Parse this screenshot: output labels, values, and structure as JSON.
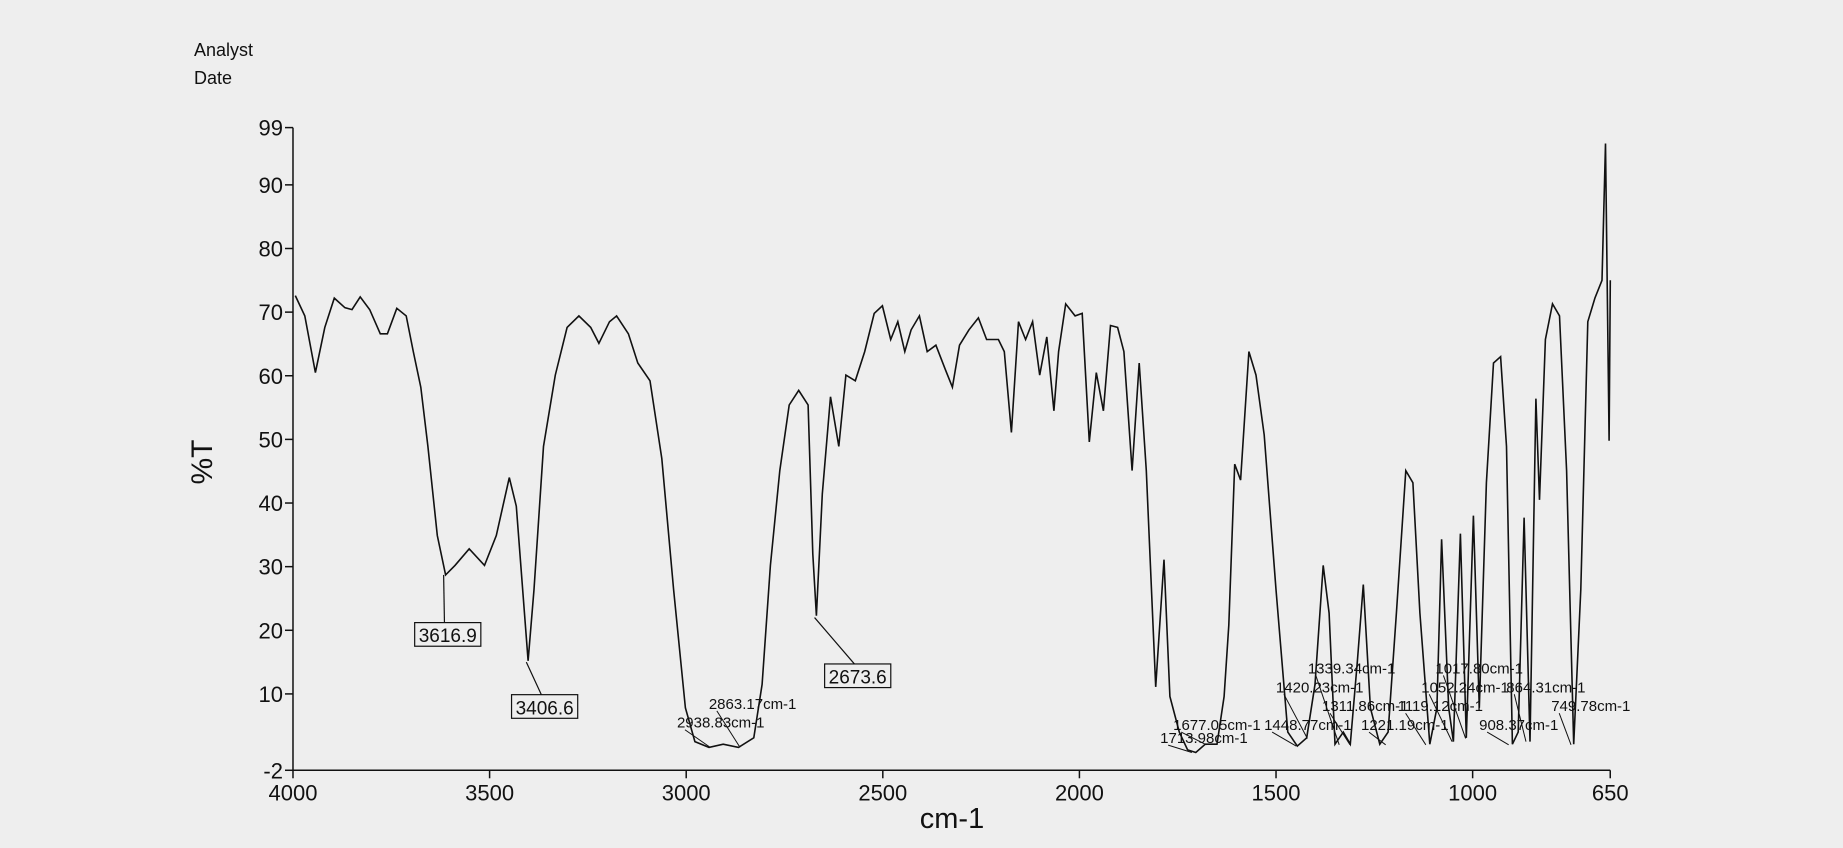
{
  "chart_data": {
    "type": "line",
    "header": [
      "Analyst",
      "Date"
    ],
    "xlabel": "cm-1",
    "ylabel": "%T",
    "xlim": [
      4000,
      650
    ],
    "xticks": [
      4000,
      3500,
      3000,
      2500,
      2000,
      1500,
      1000,
      650
    ],
    "ylim": [
      -2,
      99
    ],
    "yticks": [
      -2,
      10,
      20,
      30,
      40,
      50,
      60,
      70,
      80,
      90,
      99
    ],
    "color": "#111111",
    "x": [
      3994,
      3970,
      3943,
      3919,
      3895,
      3868,
      3850,
      3829,
      3805,
      3778,
      3760,
      3736,
      3712,
      3694,
      3675,
      3657,
      3633,
      3612,
      3588,
      3552,
      3513,
      3483,
      3450,
      3432,
      3402,
      3387,
      3363,
      3333,
      3303,
      3273,
      3243,
      3222,
      3195,
      3177,
      3147,
      3123,
      3092,
      3062,
      3032,
      3002,
      2978,
      2942,
      2906,
      2867,
      2828,
      2807,
      2786,
      2762,
      2738,
      2714,
      2690,
      2678,
      2669,
      2654,
      2633,
      2612,
      2594,
      2570,
      2546,
      2522,
      2501,
      2480,
      2462,
      2444,
      2428,
      2407,
      2387,
      2365,
      2341,
      2323,
      2305,
      2281,
      2257,
      2236,
      2206,
      2191,
      2173,
      2155,
      2137,
      2119,
      2101,
      2083,
      2065,
      2053,
      2035,
      2011,
      1993,
      1975,
      1957,
      1939,
      1921,
      1903,
      1887,
      1866,
      1848,
      1830,
      1806,
      1785,
      1770,
      1746,
      1725,
      1704,
      1680,
      1650,
      1632,
      1620,
      1605,
      1590,
      1569,
      1551,
      1530,
      1500,
      1470,
      1446,
      1422,
      1401,
      1380,
      1365,
      1350,
      1329,
      1311,
      1293,
      1278,
      1260,
      1236,
      1215,
      1194,
      1170,
      1152,
      1134,
      1109,
      1091,
      1079,
      1061,
      1049,
      1031,
      1016,
      998,
      983,
      965,
      947,
      929,
      914,
      899,
      884,
      869,
      854,
      839,
      830,
      815,
      797,
      779,
      761,
      743,
      725,
      707,
      689,
      671,
      662,
      653,
      650
    ],
    "values": [
      72.6,
      69.4,
      60.5,
      67.6,
      72.2,
      70.7,
      70.4,
      72.4,
      70.4,
      66.6,
      66.6,
      70.6,
      69.4,
      63.8,
      58.2,
      48.9,
      34.9,
      28.7,
      30.2,
      32.8,
      30.2,
      34.9,
      44,
      39.5,
      15.2,
      26.4,
      48.9,
      60.1,
      67.6,
      69.4,
      67.6,
      65.1,
      68.5,
      69.4,
      66.6,
      62,
      59.2,
      47,
      26.4,
      7.8,
      2.5,
      1.6,
      2.1,
      1.6,
      3.1,
      11.5,
      30.2,
      45.1,
      55.4,
      57.7,
      55.4,
      32,
      22.3,
      41.4,
      56.7,
      48.9,
      60.1,
      59.2,
      63.8,
      69.8,
      71,
      65.7,
      68.5,
      63.8,
      67.2,
      69.4,
      63.8,
      64.8,
      61,
      58.2,
      64.8,
      67.2,
      69.1,
      65.7,
      65.7,
      63.8,
      51.1,
      68.5,
      65.7,
      68.5,
      60.1,
      66.1,
      54.5,
      63.8,
      71.3,
      69.4,
      69.8,
      49.6,
      60.5,
      54.5,
      67.9,
      67.6,
      63.8,
      45.1,
      62,
      45.1,
      11.1,
      31.1,
      9.6,
      4,
      1.2,
      0.8,
      2.1,
      2.1,
      9.6,
      20.8,
      46.1,
      43.6,
      63.8,
      60.1,
      50.7,
      26.4,
      4,
      1.8,
      3.1,
      11.5,
      30.2,
      22.7,
      2.1,
      4,
      2.1,
      15.2,
      27.2,
      7.8,
      2.1,
      4,
      22.7,
      45.1,
      43.2,
      22.7,
      2.1,
      7.8,
      34.3,
      7.8,
      2.5,
      35.2,
      3.1,
      38,
      7.8,
      43.2,
      62,
      63,
      48.9,
      2.1,
      4,
      37.7,
      2.5,
      56.4,
      40.5,
      65.7,
      71.3,
      69.4,
      45.1,
      2.1,
      26.4,
      68.5,
      72.2,
      75,
      96.5,
      49.8,
      75
    ],
    "boxed_annotations": [
      {
        "text": "3616.9",
        "x": 3616.9,
        "y": 28.7
      },
      {
        "text": "3406.6",
        "x": 3406.6,
        "y": 15
      },
      {
        "text": "2673.6",
        "x": 2673.6,
        "y": 22
      }
    ],
    "annotations": [
      {
        "text": "2863.17cm-1",
        "x": 2863.17,
        "y": 1.6
      },
      {
        "text": "2938.83cm-1",
        "x": 2938.83,
        "y": 1.6
      },
      {
        "text": "1677.05cm-1",
        "x": 1677.05,
        "y": 2
      },
      {
        "text": "1713.98cm-1",
        "x": 1713.98,
        "y": 0.8
      },
      {
        "text": "1448.77cm-1",
        "x": 1448.77,
        "y": 1.8
      },
      {
        "text": "1420.23cm-1",
        "x": 1420.23,
        "y": 3
      },
      {
        "text": "1339.34cm-1",
        "x": 1339.34,
        "y": 2
      },
      {
        "text": "1311.86cm-1",
        "x": 1311.86,
        "y": 2
      },
      {
        "text": "1221.19cm-1",
        "x": 1221.19,
        "y": 2
      },
      {
        "text": "1119.12cm-1",
        "x": 1119.12,
        "y": 2
      },
      {
        "text": "1052.24cm-1",
        "x": 1052.24,
        "y": 2.5
      },
      {
        "text": "1017.80cm-1",
        "x": 1017.8,
        "y": 3
      },
      {
        "text": "908.37cm-1",
        "x": 908.37,
        "y": 2
      },
      {
        "text": "864.31cm-1",
        "x": 864.31,
        "y": 2.5
      },
      {
        "text": "749.78cm-1",
        "x": 749.78,
        "y": 2
      }
    ]
  }
}
